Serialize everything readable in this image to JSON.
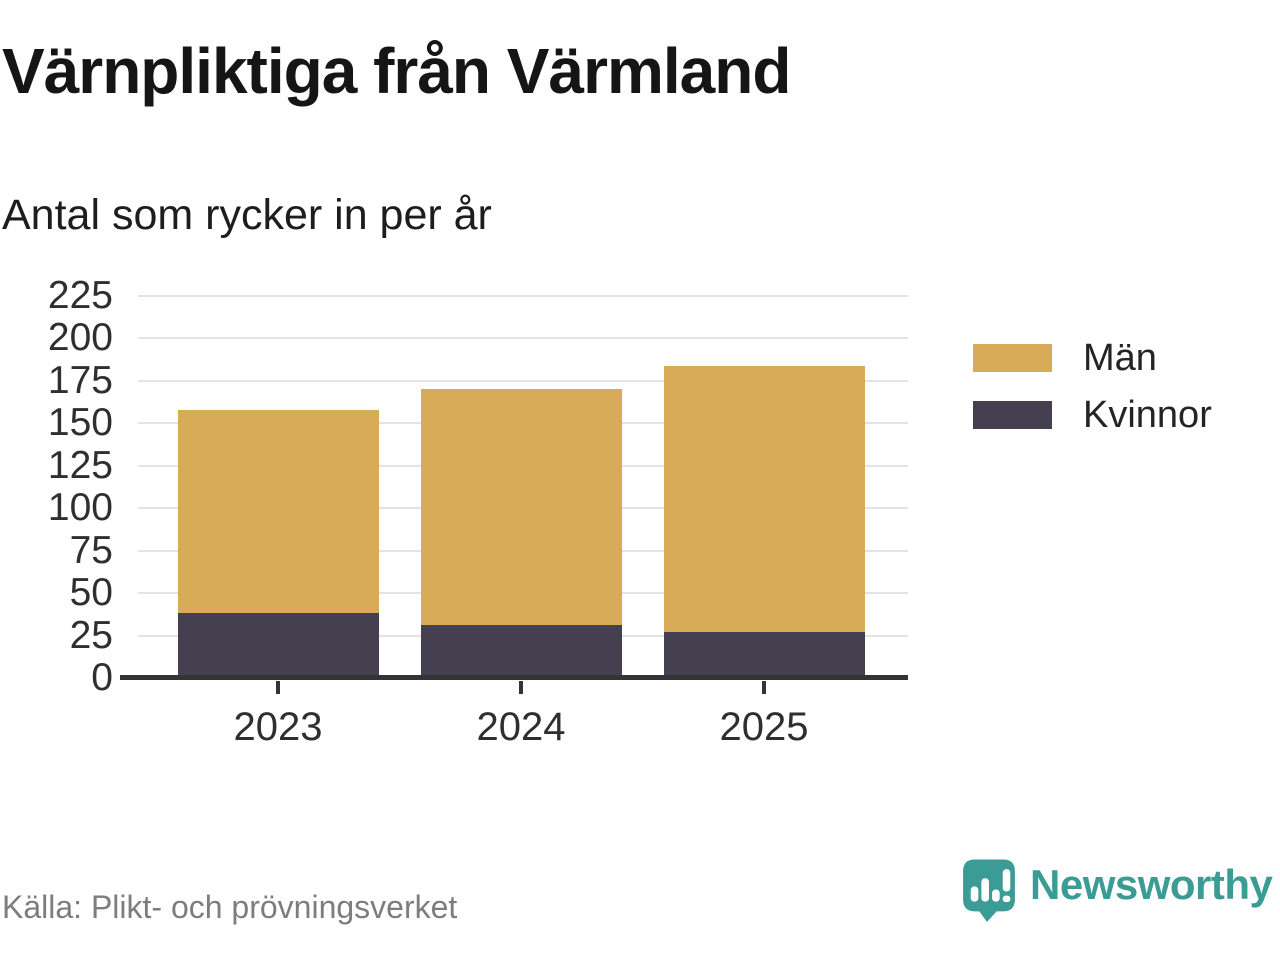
{
  "header": {
    "title": "Värnpliktiga från Värmland",
    "subtitle": "Antal som rycker in per år"
  },
  "chart_data": {
    "type": "bar",
    "stacked": true,
    "title": "Värnpliktiga från Värmland",
    "subtitle": "Antal som rycker in per år",
    "categories": [
      "2023",
      "2024",
      "2025"
    ],
    "series": [
      {
        "name": "Män",
        "color": "#d7ab58",
        "values": [
          120,
          139,
          157
        ]
      },
      {
        "name": "Kvinnor",
        "color": "#444050",
        "values": [
          38,
          31,
          27
        ]
      }
    ],
    "stack_order_bottom_to_top": [
      "Kvinnor",
      "Män"
    ],
    "stacked_totals": [
      158,
      170,
      184
    ],
    "xlabel": "",
    "ylabel": "",
    "ylim": [
      0,
      225
    ],
    "y_ticks": [
      0,
      25,
      50,
      75,
      100,
      125,
      150,
      175,
      200,
      225
    ],
    "grid": true,
    "legend_position": "top-right"
  },
  "footer": {
    "source": "Källa: Plikt- och prövningsverket",
    "brand": "Newsworthy"
  },
  "theme": {
    "brand_teal": "#3a9c94",
    "grid_color": "#e3e3e3",
    "axis_color": "#343434",
    "men_color": "#d7ab58",
    "women_color": "#444050"
  }
}
